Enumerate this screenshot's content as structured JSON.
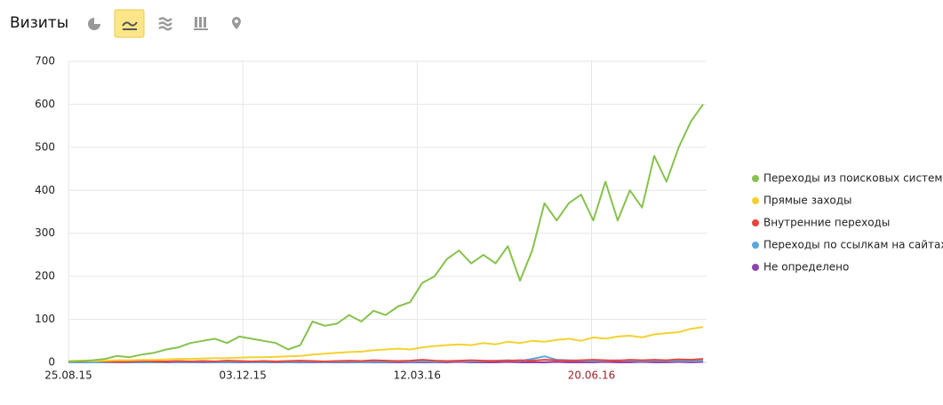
{
  "header": {
    "title": "Визиты"
  },
  "chart_data": {
    "type": "line",
    "x": [
      "2015-08-25",
      "2015-09-01",
      "2015-09-08",
      "2015-09-15",
      "2015-09-22",
      "2015-09-29",
      "2015-10-06",
      "2015-10-13",
      "2015-10-20",
      "2015-10-27",
      "2015-11-03",
      "2015-11-10",
      "2015-11-17",
      "2015-11-24",
      "2015-12-01",
      "2015-12-08",
      "2015-12-15",
      "2015-12-22",
      "2015-12-29",
      "2016-01-05",
      "2016-01-12",
      "2016-01-19",
      "2016-01-26",
      "2016-02-02",
      "2016-02-09",
      "2016-02-16",
      "2016-02-23",
      "2016-03-01",
      "2016-03-08",
      "2016-03-15",
      "2016-03-22",
      "2016-03-29",
      "2016-04-05",
      "2016-04-12",
      "2016-04-19",
      "2016-04-26",
      "2016-05-03",
      "2016-05-10",
      "2016-05-17",
      "2016-05-24",
      "2016-05-31",
      "2016-06-07",
      "2016-06-14",
      "2016-06-21",
      "2016-06-28",
      "2016-07-05",
      "2016-07-12",
      "2016-07-19",
      "2016-07-26",
      "2016-08-02",
      "2016-08-09",
      "2016-08-16",
      "2016-08-23"
    ],
    "series": [
      {
        "name": "Переходы из поисковых систем",
        "color": "#86c24c",
        "values": [
          2,
          3,
          5,
          8,
          15,
          12,
          18,
          22,
          30,
          35,
          45,
          50,
          55,
          45,
          60,
          55,
          50,
          45,
          30,
          40,
          95,
          85,
          90,
          110,
          95,
          120,
          110,
          130,
          140,
          185,
          200,
          240,
          260,
          230,
          250,
          230,
          270,
          190,
          260,
          370,
          330,
          370,
          390,
          330,
          420,
          330,
          400,
          360,
          480,
          420,
          500,
          560,
          600
        ]
      },
      {
        "name": "Прямые заходы",
        "color": "#f5d130",
        "values": [
          3,
          4,
          3,
          4,
          5,
          5,
          6,
          6,
          7,
          8,
          8,
          9,
          10,
          10,
          11,
          12,
          12,
          13,
          14,
          15,
          18,
          20,
          22,
          24,
          25,
          28,
          30,
          32,
          30,
          35,
          38,
          40,
          42,
          40,
          45,
          42,
          48,
          45,
          50,
          48,
          52,
          55,
          50,
          58,
          55,
          60,
          62,
          58,
          65,
          68,
          70,
          78,
          82
        ]
      },
      {
        "name": "Внутренние переходы",
        "color": "#e8433b",
        "values": [
          3,
          2,
          4,
          2,
          1,
          2,
          3,
          2,
          2,
          3,
          2,
          3,
          2,
          4,
          3,
          2,
          3,
          2,
          3,
          4,
          3,
          2,
          3,
          4,
          3,
          5,
          4,
          3,
          4,
          6,
          4,
          3,
          4,
          5,
          4,
          3,
          4,
          5,
          4,
          6,
          5,
          4,
          5,
          6,
          5,
          4,
          6,
          5,
          6,
          5,
          7,
          6,
          8
        ]
      },
      {
        "name": "Переходы по ссылкам на сайтах",
        "color": "#5aa7dd",
        "values": [
          0,
          0,
          0,
          0,
          0,
          1,
          0,
          0,
          1,
          0,
          0,
          1,
          0,
          0,
          1,
          0,
          0,
          1,
          0,
          1,
          1,
          0,
          1,
          1,
          0,
          1,
          1,
          2,
          1,
          2,
          1,
          2,
          3,
          2,
          3,
          4,
          5,
          3,
          8,
          14,
          6,
          5,
          4,
          3,
          4,
          5,
          4,
          3,
          4,
          3,
          4,
          3,
          4
        ]
      },
      {
        "name": "Не определено",
        "color": "#8e44ad",
        "values": [
          0,
          0,
          0,
          0,
          0,
          0,
          0,
          0,
          0,
          0,
          0,
          0,
          0,
          0,
          0,
          0,
          0,
          0,
          0,
          0,
          0,
          0,
          0,
          0,
          0,
          0,
          0,
          0,
          0,
          0,
          0,
          0,
          1,
          0,
          0,
          0,
          1,
          0,
          0,
          0,
          1,
          0,
          0,
          0,
          1,
          0,
          0,
          1,
          0,
          0,
          1,
          0,
          1
        ]
      }
    ],
    "xlim": [
      "2015-08-25",
      "2016-08-25"
    ],
    "xticks": [
      {
        "value": "2015-08-25",
        "label": "25.08.15"
      },
      {
        "value": "2015-12-03",
        "label": "03.12.15"
      },
      {
        "value": "2016-03-12",
        "label": "12.03.16"
      },
      {
        "value": "2016-06-20",
        "label": "20.06.16"
      }
    ],
    "ylim": [
      0,
      700
    ],
    "yticks": [
      0,
      100,
      200,
      300,
      400,
      500,
      600,
      700
    ],
    "grid": true,
    "legend": "right"
  }
}
